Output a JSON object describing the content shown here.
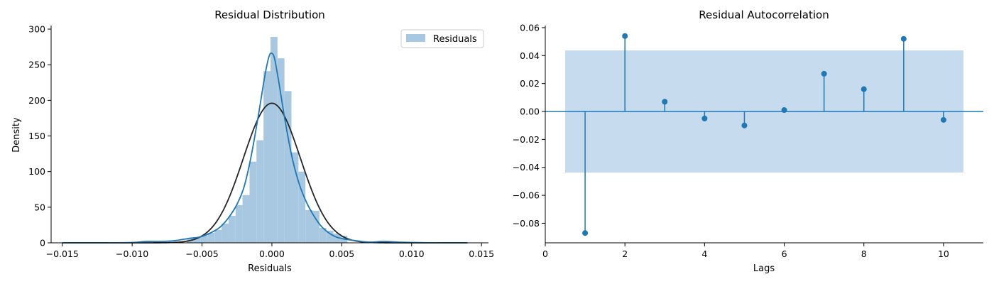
{
  "chart_data": [
    {
      "type": "histogram",
      "title": "Residual Distribution",
      "xlabel": "Residuals",
      "ylabel": "Density",
      "xlim": [
        -0.0158,
        0.0155
      ],
      "ylim": [
        0,
        305
      ],
      "xticks": [
        -0.015,
        -0.01,
        -0.005,
        0.0,
        0.005,
        0.01,
        0.015
      ],
      "xtick_labels": [
        "−0.015",
        "−0.010",
        "−0.005",
        "0.000",
        "0.005",
        "0.010",
        "0.015"
      ],
      "yticks": [
        0,
        50,
        100,
        150,
        200,
        250,
        300
      ],
      "ytick_labels": [
        "0",
        "50",
        "100",
        "150",
        "200",
        "250",
        "300"
      ],
      "legend": {
        "placement": "top-right",
        "entries": [
          "Residuals"
        ]
      },
      "grid": false,
      "bar_color": "#a7c8e0",
      "kde_color": "#1f77b4",
      "normal_color": "#262626",
      "bins_left": [
        -0.0061,
        -0.0056,
        -0.0051,
        -0.0046,
        -0.0041,
        -0.0036,
        -0.0031,
        -0.0026,
        -0.0021,
        -0.0016,
        -0.0011,
        -0.0006,
        -0.0001,
        0.0004,
        0.0009,
        0.0014,
        0.0019,
        0.0024,
        0.0029,
        0.0034,
        0.0039,
        0.0044,
        0.0049
      ],
      "bin_width": 0.0005,
      "bin_values": [
        6,
        8,
        10,
        14,
        18,
        27,
        38,
        53,
        67,
        114,
        144,
        241,
        289,
        259,
        213,
        127,
        100,
        46,
        45,
        21,
        17,
        13,
        10
      ],
      "kde": {
        "x": [
          -0.015,
          -0.012,
          -0.01,
          -0.009,
          -0.008,
          -0.007,
          -0.006,
          -0.005,
          -0.004,
          -0.0035,
          -0.003,
          -0.0025,
          -0.002,
          -0.0015,
          -0.001,
          -0.0005,
          -0.0002,
          0.0,
          0.0002,
          0.0005,
          0.001,
          0.0015,
          0.002,
          0.0025,
          0.003,
          0.0035,
          0.004,
          0.0045,
          0.005,
          0.006,
          0.007,
          0.008,
          0.009,
          0.01,
          0.012,
          0.014
        ],
        "y": [
          0,
          0,
          0.5,
          2,
          2,
          3,
          6,
          9,
          18,
          26,
          38,
          54,
          78,
          120,
          175,
          235,
          262,
          266,
          258,
          225,
          165,
          115,
          80,
          56,
          38,
          24,
          15,
          9,
          6,
          3,
          1,
          2,
          1,
          0.5,
          0,
          0
        ]
      },
      "normal": {
        "mean": 0.0,
        "peak": 196,
        "sd": 0.00204
      }
    },
    {
      "type": "stem",
      "title": "Residual Autocorrelation",
      "xlabel": "Lags",
      "ylabel": "",
      "xlim": [
        0,
        11
      ],
      "ylim": [
        -0.094,
        0.0615
      ],
      "xticks": [
        0,
        2,
        4,
        6,
        8,
        10
      ],
      "xtick_labels": [
        "0",
        "2",
        "4",
        "6",
        "8",
        "10"
      ],
      "yticks": [
        -0.08,
        -0.06,
        -0.04,
        -0.02,
        0.0,
        0.02,
        0.04,
        0.06
      ],
      "ytick_labels": [
        "−0.08",
        "−0.06",
        "−0.04",
        "−0.02",
        "0.00",
        "0.02",
        "0.04",
        "0.06"
      ],
      "grid": false,
      "color": "#1f77b4",
      "band_color": "#c6dbed",
      "lags": [
        1,
        2,
        3,
        4,
        5,
        6,
        7,
        8,
        9,
        10
      ],
      "values": [
        -0.087,
        0.054,
        0.007,
        -0.005,
        -0.01,
        0.001,
        0.027,
        0.016,
        0.052,
        -0.006
      ],
      "confidence_band": {
        "x_range": [
          0.5,
          10.5
        ],
        "lower": -0.0437,
        "upper": 0.0437
      }
    }
  ]
}
